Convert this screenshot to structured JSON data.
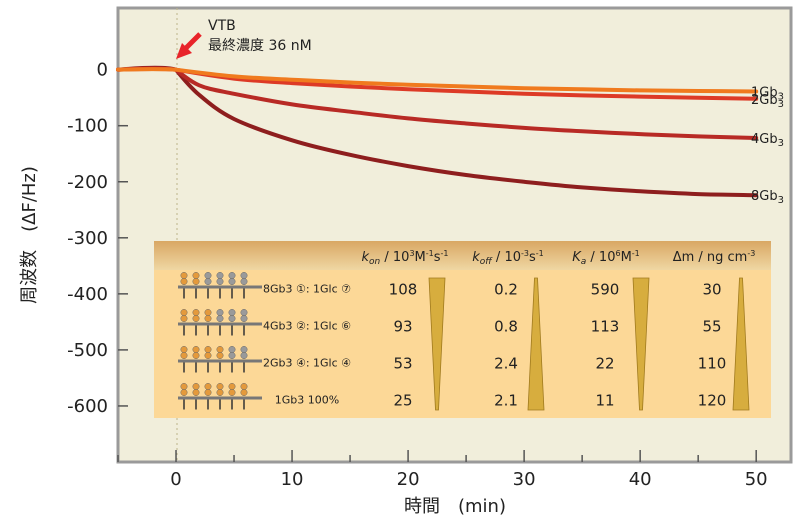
{
  "chart_data": {
    "type": "line",
    "xlabel": "時間　(min)",
    "ylabel": "周波数　(ΔF/Hz)",
    "xlim": [
      -5,
      53
    ],
    "ylim": [
      -700,
      110
    ],
    "xticks": [
      0,
      10,
      20,
      30,
      40,
      50
    ],
    "yticks": [
      0,
      -100,
      -200,
      -300,
      -400,
      -500,
      -600
    ],
    "grid": false,
    "injection_time": 0,
    "annotation": {
      "line1": "VTB",
      "line2": "最終濃度 36 nM"
    },
    "series": [
      {
        "name": "1Gb3",
        "label_main": "1Gb",
        "label_sub": "3",
        "color": "#f07a1e",
        "x": [
          -5,
          0,
          5,
          10,
          15,
          20,
          25,
          30,
          35,
          40,
          45,
          50
        ],
        "y": [
          0,
          0,
          -12,
          -18,
          -23,
          -27,
          -30,
          -33,
          -35,
          -37,
          -38,
          -39
        ]
      },
      {
        "name": "2Gb3",
        "label_main": "2Gb",
        "label_sub": "3",
        "color": "#dd3a26",
        "x": [
          -5,
          0,
          5,
          10,
          15,
          20,
          25,
          30,
          35,
          40,
          45,
          50
        ],
        "y": [
          0,
          0,
          -16,
          -24,
          -30,
          -35,
          -39,
          -43,
          -46,
          -48,
          -50,
          -52
        ]
      },
      {
        "name": "4Gb3",
        "label_main": "4Gb",
        "label_sub": "3",
        "color": "#b82a25",
        "x": [
          -5,
          0,
          2,
          5,
          10,
          15,
          20,
          25,
          30,
          35,
          40,
          45,
          50
        ],
        "y": [
          0,
          0,
          -28,
          -43,
          -62,
          -75,
          -87,
          -96,
          -104,
          -110,
          -115,
          -119,
          -122
        ]
      },
      {
        "name": "8Gb3",
        "label_main": "8Gb",
        "label_sub": "3",
        "color": "#8e1e1e",
        "x": [
          -5,
          0,
          2,
          5,
          10,
          15,
          20,
          25,
          30,
          35,
          40,
          45,
          50
        ],
        "y": [
          0,
          0,
          -45,
          -88,
          -126,
          -152,
          -172,
          -188,
          -200,
          -210,
          -217,
          -222,
          -224
        ]
      }
    ],
    "table": {
      "headers": [
        {
          "main": "k",
          "sub": "on",
          "rest": " / 10",
          "sup1": "3",
          "rest2": "M",
          "sup2": "-1",
          "rest3": "s",
          "sup3": "-1"
        },
        {
          "main": "k",
          "sub": "off",
          "rest": " / 10",
          "sup1": "-3",
          "rest2": "s",
          "sup2": "-1",
          "rest3": "",
          "sup3": ""
        },
        {
          "main": "K",
          "sub": "a",
          "rest": " / 10",
          "sup1": "6",
          "rest2": "M",
          "sup2": "-1",
          "rest3": "",
          "sup3": ""
        },
        {
          "main": "Δm / ng cm",
          "sub": "",
          "rest": "",
          "sup1": "-3",
          "rest2": "",
          "sup2": "",
          "rest3": "",
          "sup3": ""
        }
      ],
      "rows": [
        {
          "comp": "8Gb3 ①: 1Glc ⑦",
          "kon": "108",
          "koff": "0.2",
          "ka": "590",
          "dm": "30"
        },
        {
          "comp": "4Gb3 ②: 1Glc ⑥",
          "kon": "93",
          "koff": "0.8",
          "ka": "113",
          "dm": "55"
        },
        {
          "comp": "2Gb3 ④: 1Glc ④",
          "kon": "53",
          "koff": "2.4",
          "ka": "22",
          "dm": "110"
        },
        {
          "comp": "1Gb3 100%",
          "kon": "25",
          "koff": "2.1",
          "ka": "11",
          "dm": "120"
        }
      ],
      "colors": {
        "header_top": "#d9a764",
        "header_bottom": "#efd7a3",
        "body": "#fcd897",
        "wedge": "#d7ad3e"
      }
    },
    "colors": {
      "plot_bg": "#f1eedb",
      "border": "#9a9a9a",
      "guide": "#bdb48a",
      "arrow": "#e8242a",
      "baseline": "#e3312b"
    }
  }
}
